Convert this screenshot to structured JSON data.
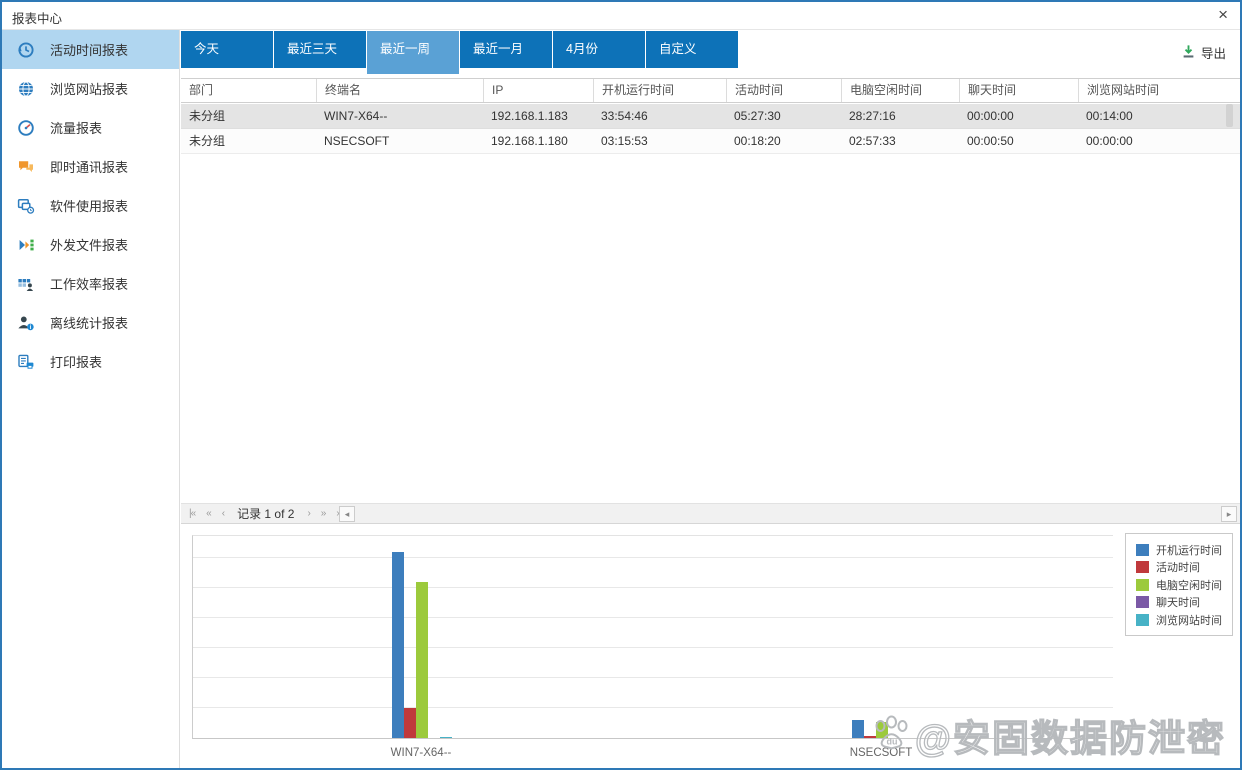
{
  "window": {
    "title": "报表中心",
    "close": "×"
  },
  "colors": {
    "accent_blue": "#0d72b8",
    "tab_selected_blue": "#5aa1d5",
    "sidebar_active_bg": "#b0d6f0",
    "window_border_blue": "#2e79b6",
    "export_green": "#2fa85c"
  },
  "sidebar": {
    "items": [
      {
        "name": "activity-time",
        "label": "活动时间报表",
        "icon": "clock-history-icon",
        "active": true
      },
      {
        "name": "web-browsing",
        "label": "浏览网站报表",
        "icon": "globe-icon",
        "active": false
      },
      {
        "name": "traffic",
        "label": "流量报表",
        "icon": "gauge-icon",
        "active": false
      },
      {
        "name": "instant-messaging",
        "label": "即时通讯报表",
        "icon": "chat-icon",
        "active": false
      },
      {
        "name": "software-usage",
        "label": "软件使用报表",
        "icon": "software-icon",
        "active": false
      },
      {
        "name": "outgoing-files",
        "label": "外发文件报表",
        "icon": "outgoing-files-icon",
        "active": false
      },
      {
        "name": "work-efficiency",
        "label": "工作效率报表",
        "icon": "efficiency-icon",
        "active": false
      },
      {
        "name": "offline-stats",
        "label": "离线统计报表",
        "icon": "offline-stats-icon",
        "active": false
      },
      {
        "name": "print",
        "label": "打印报表",
        "icon": "printer-icon",
        "active": false
      }
    ]
  },
  "tabs": [
    {
      "name": "today",
      "label": "今天",
      "selected": false
    },
    {
      "name": "last-3-days",
      "label": "最近三天",
      "selected": false
    },
    {
      "name": "last-week",
      "label": "最近一周",
      "selected": true
    },
    {
      "name": "last-month",
      "label": "最近一月",
      "selected": false
    },
    {
      "name": "april",
      "label": "4月份",
      "selected": false
    },
    {
      "name": "custom",
      "label": "自定义",
      "selected": false
    }
  ],
  "toolbar": {
    "export_label": "导出"
  },
  "table": {
    "columns": [
      "部门",
      "终端名",
      "IP",
      "开机运行时间",
      "活动时间",
      "电脑空闲时间",
      "聊天时间",
      "浏览网站时间"
    ],
    "rows": [
      {
        "selected": true,
        "cells": [
          "未分组",
          "WIN7-X64--",
          "192.168.1.183",
          "33:54:46",
          "05:27:30",
          "28:27:16",
          "00:00:00",
          "00:14:00"
        ]
      },
      {
        "selected": false,
        "cells": [
          "未分组",
          "NSECSOFT",
          "192.168.1.180",
          "03:15:53",
          "00:18:20",
          "02:57:33",
          "00:00:50",
          "00:00:00"
        ]
      }
    ]
  },
  "pagination": {
    "first": "|«",
    "prev_page": "«",
    "prev": "‹",
    "text": "记录 1 of 2",
    "next": "›",
    "next_page": "»",
    "last": "»|",
    "scroll_left": "◂",
    "scroll_right": "▸"
  },
  "chart_data": {
    "type": "bar",
    "title": "",
    "xlabel": "",
    "ylabel": "",
    "categories": [
      "WIN7-X64--",
      "NSECSOFT"
    ],
    "series": [
      {
        "name": "开机运行时间",
        "color": "#3d7ebd",
        "values_hours": [
          33.91,
          3.26
        ],
        "values_hms": [
          "33:54:46",
          "03:15:53"
        ]
      },
      {
        "name": "活动时间",
        "color": "#c0393c",
        "values_hours": [
          5.46,
          0.31
        ],
        "values_hms": [
          "05:27:30",
          "00:18:20"
        ]
      },
      {
        "name": "电脑空闲时间",
        "color": "#9cca3c",
        "values_hours": [
          28.45,
          2.96
        ],
        "values_hms": [
          "28:27:16",
          "02:57:33"
        ]
      },
      {
        "name": "聊天时间",
        "color": "#7b59a6",
        "values_hours": [
          0,
          0.01
        ],
        "values_hms": [
          "00:00:00",
          "00:00:50"
        ]
      },
      {
        "name": "浏览网站时间",
        "color": "#47b2c6",
        "values_hours": [
          0.23,
          0
        ],
        "values_hms": [
          "00:14:00",
          "00:00:00"
        ]
      }
    ],
    "ylim": [
      0,
      37.2
    ],
    "grid": true,
    "y_axis_labels": false,
    "legend_position": "top-right"
  },
  "watermark": {
    "text": "@安固数据防泄密",
    "paw_label": "du"
  }
}
